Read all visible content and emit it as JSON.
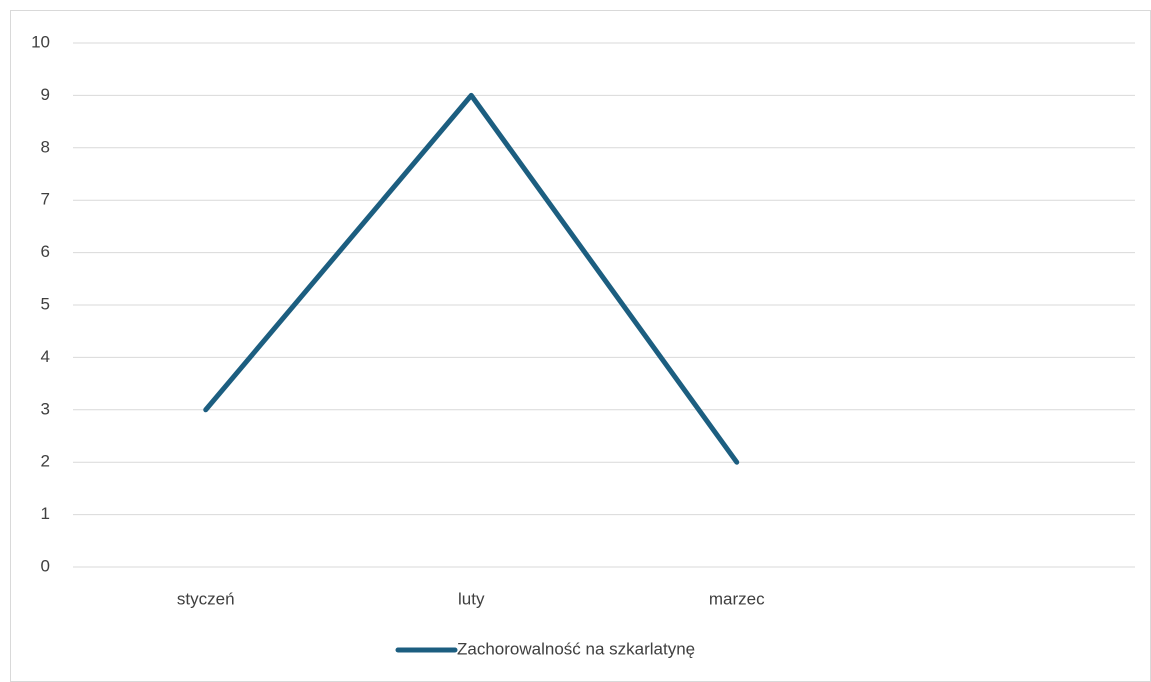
{
  "chart_data": {
    "type": "line",
    "categories": [
      "styczeń",
      "luty",
      "marzec",
      null
    ],
    "series": [
      {
        "name": "Zachorowalność na szkarlatynę",
        "color": "#1c5e80",
        "values": [
          3,
          9,
          2,
          null
        ]
      }
    ],
    "ylim": [
      0,
      10
    ],
    "yticks": [
      0,
      1,
      2,
      3,
      4,
      5,
      6,
      7,
      8,
      9,
      10
    ],
    "grid": true,
    "legend": "bottom"
  }
}
